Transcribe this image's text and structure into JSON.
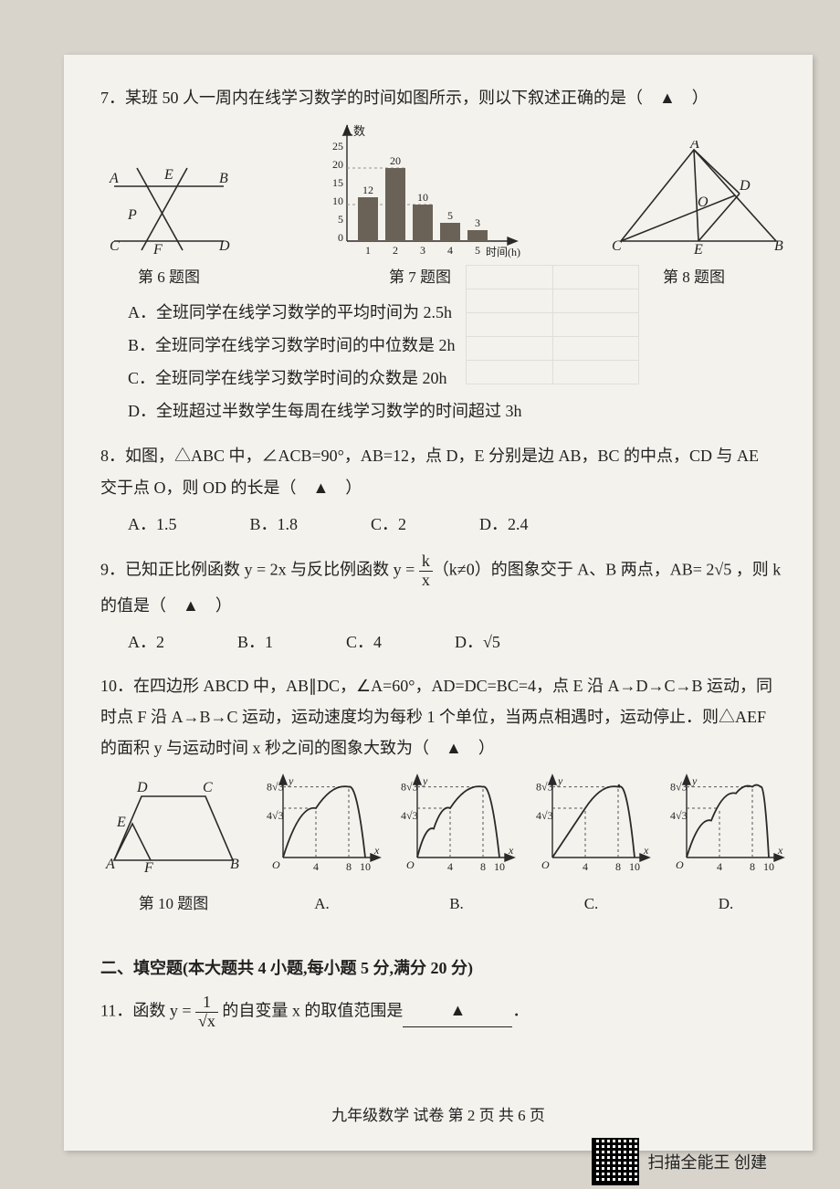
{
  "q7": {
    "number": "7．",
    "stem": "某班 50 人一周内在线学习数学的时间如图所示，则以下叙述正确的是（　▲　）",
    "options": {
      "A": "A．全班同学在线学习数学的平均时间为 2.5h",
      "B": "B．全班同学在线学习数学时间的中位数是 2h",
      "C": "C．全班同学在线学习数学时间的众数是 20h",
      "D": "D．全班超过半数学生每周在线学习数学的时间超过 3h"
    },
    "fig6_caption": "第 6 题图",
    "fig7_caption": "第 7 题图",
    "fig8_caption": "第 8 题图",
    "bar_chart": {
      "type": "bar",
      "x_label": "时间(h)",
      "y_label": "人数",
      "categories": [
        "1",
        "2",
        "3",
        "4",
        "5"
      ],
      "values": [
        12,
        20,
        10,
        5,
        3
      ],
      "value_labels": [
        "12",
        "20",
        "10",
        "5",
        "3"
      ],
      "ylim": [
        0,
        25
      ],
      "ytick_step": 5,
      "bar_color": "#6b6257",
      "axis_color": "#2a2a2a",
      "grid_color": "#9a948a",
      "background_color": "#f4f2ec",
      "label_fontsize": 12
    },
    "fig6": {
      "type": "diagram",
      "points": [
        "A",
        "B",
        "C",
        "D",
        "E",
        "F",
        "P"
      ],
      "line_color": "#2a2a2a",
      "line_width": 1.6
    },
    "fig8": {
      "type": "triangle-diagram",
      "points": [
        "A",
        "B",
        "C",
        "D",
        "E",
        "O"
      ],
      "line_color": "#2a2a2a",
      "line_width": 1.6
    }
  },
  "q8": {
    "number": "8．",
    "stem1": "如图，△ABC 中，∠ACB=90°，AB=12，点 D，E 分别是边 AB，BC 的中点，CD 与 AE",
    "stem2": "交于点 O，则 OD 的长是（　▲　）",
    "options": {
      "A": "A．1.5",
      "B": "B．1.8",
      "C": "C．2",
      "D": "D．2.4"
    }
  },
  "q9": {
    "number": "9．",
    "stem_before": "已知正比例函数 y = 2x 与反比例函数 y = ",
    "frac_n": "k",
    "frac_d": "x",
    "stem_after": "（k≠0）的图象交于 A、B 两点，AB= 2√5 ，则 k",
    "stem_line2": "的值是（　▲　）",
    "options": {
      "A": "A．2",
      "B": "B．1",
      "C": "C．4",
      "D": "D．√5"
    }
  },
  "q10": {
    "number": "10．",
    "stem1": "在四边形 ABCD 中，AB∥DC，∠A=60°，AD=DC=BC=4，点 E 沿 A→D→C→B 运动，同",
    "stem2": "时点 F 沿 A→B→C 运动，运动速度均为每秒 1 个单位，当两点相遇时，运动停止．则△AEF",
    "stem3": "的面积 y 与运动时间 x 秒之间的图象大致为（　▲　）",
    "fig_caption": "第 10 题图",
    "option_labels": {
      "A": "A.",
      "B": "B.",
      "C": "C.",
      "D": "D."
    },
    "trapezoid": {
      "type": "diagram",
      "points": [
        "A",
        "B",
        "C",
        "D",
        "E",
        "F"
      ],
      "line_color": "#2a2a2a",
      "line_width": 1.6
    },
    "mini_charts": {
      "type": "line-sketch",
      "x_ticks": [
        "4",
        "8",
        "10"
      ],
      "y_ticks": [
        "4√3",
        "8√3"
      ],
      "axis_labels": {
        "x": "x",
        "y": "y"
      },
      "axis_color": "#2a2a2a",
      "dash_color": "#555555",
      "curve_color": "#2a2a2a",
      "line_width": 1.6,
      "curves": {
        "A": [
          [
            0,
            0
          ],
          [
            4,
            6
          ],
          [
            8,
            8.6
          ],
          [
            10,
            0
          ]
        ],
        "B": [
          [
            0,
            0
          ],
          [
            2,
            3.5
          ],
          [
            4,
            6
          ],
          [
            8,
            8.6
          ],
          [
            10,
            0
          ]
        ],
        "C": [
          [
            0,
            0
          ],
          [
            4,
            6
          ],
          [
            8,
            8.6
          ],
          [
            8.2,
            8.6
          ],
          [
            10,
            0
          ]
        ],
        "D": [
          [
            0,
            0
          ],
          [
            3,
            4.5
          ],
          [
            6,
            7.8
          ],
          [
            8,
            8.6
          ],
          [
            9,
            8.6
          ],
          [
            10,
            0
          ]
        ]
      }
    }
  },
  "section2": {
    "heading": "二、填空题(本大题共 4 小题,每小题 5 分,满分 20 分)"
  },
  "q11": {
    "number": "11．",
    "stem_before": "函数 y = ",
    "frac_n": "1",
    "frac_d": "√x",
    "stem_after": " 的自变量 x 的取值范围是",
    "blank": "▲",
    "period": "．"
  },
  "footer": {
    "text": "九年级数学  试卷    第 2 页 共 6 页"
  },
  "qr": {
    "label": "扫描全能王  创建"
  },
  "colors": {
    "page_bg": "#f4f2ec",
    "outer_bg": "#d8d4cc",
    "text": "#222222"
  }
}
